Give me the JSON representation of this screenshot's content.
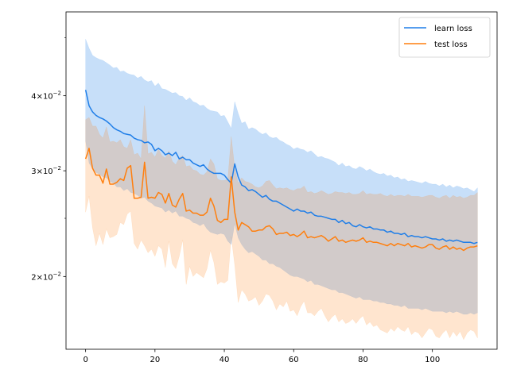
{
  "chart_data": {
    "type": "line",
    "title": "",
    "xlabel": "",
    "ylabel": "",
    "y_scale": "log",
    "xlim": [
      -5.65,
      118.65
    ],
    "ylim": [
      0.01513,
      0.05517
    ],
    "x_ticks": [
      0,
      20,
      40,
      60,
      80,
      100
    ],
    "y_ticks": [
      {
        "value": 0.04,
        "label": "4 × 10⁻²"
      },
      {
        "value": 0.03,
        "label": "3 × 10⁻²"
      },
      {
        "value": 0.02,
        "label": "2 × 10⁻²"
      }
    ],
    "grid": false,
    "legend_position": "top-right",
    "series": [
      {
        "name": "learn loss",
        "color": "#1f7ee8",
        "band_color": "#1f7ee8",
        "x_start": 0,
        "values": [
          0.0409,
          0.0385,
          0.0376,
          0.0371,
          0.0368,
          0.0366,
          0.0363,
          0.0359,
          0.0354,
          0.0351,
          0.0349,
          0.0346,
          0.0345,
          0.0344,
          0.034,
          0.0338,
          0.0337,
          0.0334,
          0.0335,
          0.0332,
          0.0324,
          0.0327,
          0.0324,
          0.0319,
          0.0321,
          0.0318,
          0.0322,
          0.0314,
          0.0316,
          0.0313,
          0.0313,
          0.0309,
          0.0307,
          0.0305,
          0.0307,
          0.0302,
          0.0299,
          0.0297,
          0.0297,
          0.0297,
          0.0295,
          0.029,
          0.0286,
          0.0308,
          0.0293,
          0.0284,
          0.0282,
          0.0278,
          0.0279,
          0.0277,
          0.0274,
          0.0271,
          0.0273,
          0.0269,
          0.0267,
          0.0267,
          0.0265,
          0.0263,
          0.0261,
          0.0259,
          0.0257,
          0.0259,
          0.0257,
          0.0257,
          0.0255,
          0.0256,
          0.0253,
          0.0252,
          0.0252,
          0.0251,
          0.025,
          0.0249,
          0.0249,
          0.0246,
          0.0248,
          0.0245,
          0.0246,
          0.0243,
          0.0242,
          0.0244,
          0.0242,
          0.0241,
          0.0242,
          0.024,
          0.024,
          0.0239,
          0.0239,
          0.0237,
          0.0238,
          0.0236,
          0.0236,
          0.0235,
          0.0236,
          0.0233,
          0.0234,
          0.0233,
          0.0233,
          0.0232,
          0.0233,
          0.0232,
          0.0231,
          0.0231,
          0.023,
          0.0231,
          0.0229,
          0.023,
          0.0229,
          0.023,
          0.0229,
          0.0228,
          0.0228,
          0.0228,
          0.0227,
          0.0228
        ],
        "band_upper": [
          0.0497,
          0.048,
          0.0467,
          0.0463,
          0.046,
          0.0458,
          0.0454,
          0.045,
          0.0445,
          0.0446,
          0.0439,
          0.044,
          0.0436,
          0.0434,
          0.0433,
          0.0428,
          0.0431,
          0.0425,
          0.0422,
          0.0424,
          0.0415,
          0.042,
          0.0411,
          0.041,
          0.0407,
          0.0404,
          0.0405,
          0.04,
          0.0399,
          0.0393,
          0.0397,
          0.0391,
          0.0389,
          0.0385,
          0.0386,
          0.0381,
          0.0378,
          0.0377,
          0.0376,
          0.037,
          0.0371,
          0.0362,
          0.0353,
          0.0391,
          0.0374,
          0.036,
          0.0362,
          0.0352,
          0.0354,
          0.0352,
          0.0348,
          0.0345,
          0.0347,
          0.0342,
          0.034,
          0.0341,
          0.0337,
          0.0335,
          0.0332,
          0.033,
          0.0326,
          0.0328,
          0.0326,
          0.0325,
          0.0322,
          0.0324,
          0.032,
          0.0316,
          0.0317,
          0.0315,
          0.0314,
          0.0312,
          0.031,
          0.0306,
          0.0309,
          0.0305,
          0.0306,
          0.0303,
          0.0302,
          0.0305,
          0.0303,
          0.03,
          0.0302,
          0.0299,
          0.0297,
          0.0296,
          0.0297,
          0.0294,
          0.0295,
          0.0292,
          0.0293,
          0.029,
          0.0291,
          0.0288,
          0.0289,
          0.0288,
          0.0287,
          0.0286,
          0.0288,
          0.0286,
          0.0285,
          0.0285,
          0.0283,
          0.0285,
          0.0282,
          0.0284,
          0.0281,
          0.0283,
          0.0282,
          0.028,
          0.0281,
          0.0279,
          0.0277,
          0.0281
        ],
        "band_lower": [
          0.0336,
          0.0309,
          0.0302,
          0.0298,
          0.0296,
          0.0293,
          0.0292,
          0.0288,
          0.0286,
          0.0282,
          0.0282,
          0.0278,
          0.028,
          0.0276,
          0.0275,
          0.0273,
          0.027,
          0.0271,
          0.0267,
          0.0265,
          0.0262,
          0.0261,
          0.026,
          0.0256,
          0.0258,
          0.0255,
          0.0257,
          0.0252,
          0.0252,
          0.025,
          0.0249,
          0.0246,
          0.0245,
          0.0243,
          0.0245,
          0.024,
          0.0237,
          0.0236,
          0.0235,
          0.0236,
          0.0235,
          0.0229,
          0.0226,
          0.0245,
          0.0232,
          0.0226,
          0.0222,
          0.0219,
          0.022,
          0.0218,
          0.0216,
          0.0213,
          0.0213,
          0.021,
          0.021,
          0.0208,
          0.0207,
          0.0205,
          0.0203,
          0.0201,
          0.02,
          0.02,
          0.0199,
          0.0198,
          0.0196,
          0.0197,
          0.0194,
          0.0194,
          0.0193,
          0.0192,
          0.0191,
          0.019,
          0.019,
          0.0188,
          0.0188,
          0.0187,
          0.0186,
          0.0185,
          0.0184,
          0.0185,
          0.0183,
          0.0183,
          0.0183,
          0.0182,
          0.0182,
          0.0181,
          0.0181,
          0.018,
          0.018,
          0.0179,
          0.0179,
          0.0178,
          0.0179,
          0.0177,
          0.0177,
          0.0177,
          0.0177,
          0.0176,
          0.0177,
          0.0176,
          0.0175,
          0.0175,
          0.0175,
          0.0175,
          0.0174,
          0.0175,
          0.0174,
          0.0175,
          0.0174,
          0.0173,
          0.0173,
          0.0174,
          0.0173,
          0.0174
        ]
      },
      {
        "name": "test loss",
        "color": "#ff7f0e",
        "band_color": "#ff7f0e",
        "x_start": 0,
        "values": [
          0.0314,
          0.0327,
          0.0303,
          0.0295,
          0.0295,
          0.0286,
          0.0302,
          0.0285,
          0.0285,
          0.0287,
          0.0291,
          0.0289,
          0.0303,
          0.0306,
          0.027,
          0.027,
          0.0271,
          0.031,
          0.027,
          0.0271,
          0.027,
          0.0276,
          0.0274,
          0.0265,
          0.0275,
          0.0263,
          0.0261,
          0.0269,
          0.0275,
          0.0257,
          0.0258,
          0.0255,
          0.0255,
          0.0253,
          0.0253,
          0.0256,
          0.027,
          0.0262,
          0.0248,
          0.0246,
          0.0249,
          0.0249,
          0.0293,
          0.0256,
          0.0239,
          0.0246,
          0.0244,
          0.0242,
          0.0238,
          0.0238,
          0.0239,
          0.0239,
          0.0242,
          0.0243,
          0.024,
          0.0235,
          0.0236,
          0.0236,
          0.0237,
          0.0234,
          0.0235,
          0.0233,
          0.0235,
          0.0238,
          0.0232,
          0.0233,
          0.0232,
          0.0233,
          0.0234,
          0.0232,
          0.0229,
          0.0231,
          0.0233,
          0.0229,
          0.023,
          0.0228,
          0.0229,
          0.023,
          0.0229,
          0.023,
          0.0232,
          0.0228,
          0.0229,
          0.0228,
          0.0228,
          0.0227,
          0.0226,
          0.0225,
          0.0227,
          0.0225,
          0.0227,
          0.0226,
          0.0225,
          0.0227,
          0.0224,
          0.0225,
          0.0224,
          0.0223,
          0.0224,
          0.0226,
          0.0226,
          0.0223,
          0.0222,
          0.0224,
          0.0225,
          0.0222,
          0.0224,
          0.0222,
          0.0223,
          0.0221,
          0.0223,
          0.0224,
          0.0224,
          0.0225
        ],
        "band_upper": [
          0.0365,
          0.0368,
          0.0356,
          0.0356,
          0.0345,
          0.034,
          0.0355,
          0.0335,
          0.0336,
          0.0334,
          0.0338,
          0.0329,
          0.0327,
          0.0338,
          0.0319,
          0.0321,
          0.0314,
          0.0385,
          0.032,
          0.0322,
          0.0316,
          0.0326,
          0.0318,
          0.0315,
          0.0324,
          0.0311,
          0.0307,
          0.0315,
          0.0318,
          0.0305,
          0.0306,
          0.0301,
          0.03,
          0.0296,
          0.0295,
          0.0299,
          0.0314,
          0.0308,
          0.0291,
          0.0289,
          0.0289,
          0.029,
          0.0342,
          0.0303,
          0.0286,
          0.0292,
          0.0288,
          0.0287,
          0.0285,
          0.0282,
          0.0281,
          0.0283,
          0.0288,
          0.0289,
          0.0284,
          0.028,
          0.0281,
          0.028,
          0.0281,
          0.0279,
          0.0278,
          0.028,
          0.028,
          0.0283,
          0.0276,
          0.0277,
          0.0275,
          0.0276,
          0.0278,
          0.0276,
          0.0274,
          0.0275,
          0.0277,
          0.0276,
          0.0276,
          0.0275,
          0.0276,
          0.0274,
          0.0274,
          0.0275,
          0.0278,
          0.0274,
          0.0275,
          0.0274,
          0.0274,
          0.0275,
          0.0273,
          0.0272,
          0.0274,
          0.0272,
          0.0273,
          0.0273,
          0.0272,
          0.0274,
          0.0272,
          0.0272,
          0.0272,
          0.0271,
          0.0272,
          0.0273,
          0.0273,
          0.0271,
          0.027,
          0.0272,
          0.0273,
          0.027,
          0.0273,
          0.0271,
          0.0272,
          0.027,
          0.0271,
          0.0273,
          0.0273,
          0.0276
        ],
        "band_lower": [
          0.0256,
          0.0272,
          0.0241,
          0.0225,
          0.0236,
          0.0226,
          0.024,
          0.0232,
          0.0233,
          0.0235,
          0.0246,
          0.0244,
          0.0254,
          0.0257,
          0.0227,
          0.0222,
          0.023,
          0.0225,
          0.0219,
          0.0222,
          0.0216,
          0.0225,
          0.0222,
          0.0207,
          0.0229,
          0.021,
          0.0206,
          0.0216,
          0.023,
          0.0194,
          0.0208,
          0.02,
          0.0203,
          0.0201,
          0.0199,
          0.0206,
          0.0221,
          0.0211,
          0.0194,
          0.0196,
          0.0195,
          0.0197,
          0.0233,
          0.0209,
          0.0181,
          0.019,
          0.0187,
          0.0182,
          0.0183,
          0.0185,
          0.0179,
          0.0182,
          0.0187,
          0.0186,
          0.0182,
          0.0176,
          0.018,
          0.0178,
          0.0182,
          0.0175,
          0.0176,
          0.0172,
          0.0178,
          0.0182,
          0.0174,
          0.0174,
          0.0172,
          0.0175,
          0.0177,
          0.0172,
          0.0168,
          0.0171,
          0.0173,
          0.0168,
          0.017,
          0.0167,
          0.0168,
          0.017,
          0.0167,
          0.017,
          0.0172,
          0.0166,
          0.0168,
          0.0165,
          0.0166,
          0.0163,
          0.0162,
          0.0161,
          0.0164,
          0.0162,
          0.0165,
          0.0163,
          0.0162,
          0.0165,
          0.016,
          0.0162,
          0.0161,
          0.0158,
          0.0161,
          0.0164,
          0.0163,
          0.0159,
          0.0158,
          0.0161,
          0.0163,
          0.0158,
          0.0162,
          0.0159,
          0.0162,
          0.0157,
          0.0161,
          0.0163,
          0.0162,
          0.0158
        ]
      }
    ]
  }
}
